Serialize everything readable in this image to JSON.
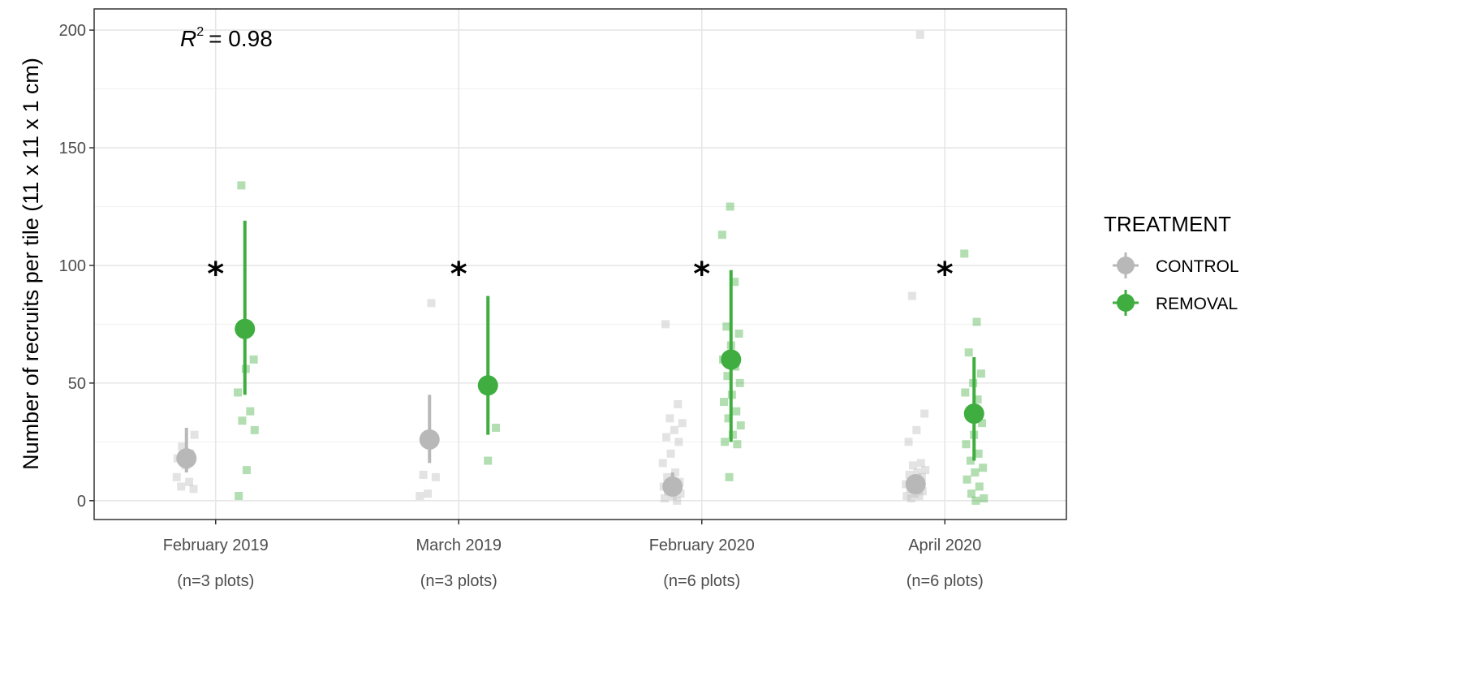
{
  "chart_data": {
    "type": "scatter",
    "title": "",
    "xlabel": "",
    "ylabel": "Number of recruits per tile (11 x 11 x 1 cm)",
    "ylim": [
      -8,
      209
    ],
    "yticks": [
      0,
      50,
      100,
      150,
      200
    ],
    "grid": true,
    "legend_placement": "right",
    "legend_title": "TREATMENT",
    "annotation": {
      "r2_symbol": "R",
      "r2_superscript": "2",
      "r2_value": "= 0.98"
    },
    "categories": [
      {
        "label": "February 2019",
        "sublabel": "(n=3 plots)",
        "star": "*"
      },
      {
        "label": "March 2019",
        "sublabel": "(n=3 plots)",
        "star": "*"
      },
      {
        "label": "February 2020",
        "sublabel": "(n=6 plots)",
        "star": "*"
      },
      {
        "label": "April 2020",
        "sublabel": "(n=6 plots)",
        "star": "*"
      }
    ],
    "series": [
      {
        "name": "CONTROL",
        "color": "#b8b8b8",
        "mean": [
          18,
          26,
          6,
          7
        ],
        "lower": [
          12,
          16,
          2,
          3
        ],
        "upper": [
          31,
          45,
          12,
          11
        ],
        "raw": [
          [
            10,
            8,
            6,
            5,
            15,
            18,
            20,
            23,
            28
          ],
          [
            84,
            11,
            10,
            3,
            2
          ],
          [
            75,
            41,
            35,
            33,
            30,
            27,
            25,
            20,
            16,
            12,
            10,
            8,
            7,
            6,
            5,
            4,
            3,
            2,
            1,
            0
          ],
          [
            198,
            87,
            37,
            30,
            25,
            16,
            15,
            13,
            12,
            11,
            10,
            8,
            7,
            6,
            5,
            4,
            3,
            2,
            2,
            1
          ]
        ]
      },
      {
        "name": "REMOVAL",
        "color": "#3fad3f",
        "mean": [
          73,
          49,
          60,
          37
        ],
        "lower": [
          45,
          28,
          25,
          17
        ],
        "upper": [
          119,
          87,
          98,
          61
        ],
        "raw": [
          [
            134,
            60,
            56,
            46,
            38,
            34,
            30,
            13,
            2
          ],
          [
            31,
            17
          ],
          [
            125,
            113,
            93,
            74,
            71,
            66,
            60,
            57,
            53,
            50,
            45,
            42,
            38,
            35,
            32,
            28,
            25,
            24,
            10
          ],
          [
            105,
            76,
            63,
            54,
            50,
            46,
            43,
            38,
            33,
            28,
            24,
            20,
            17,
            14,
            12,
            9,
            6,
            3,
            1,
            0
          ]
        ]
      }
    ]
  }
}
